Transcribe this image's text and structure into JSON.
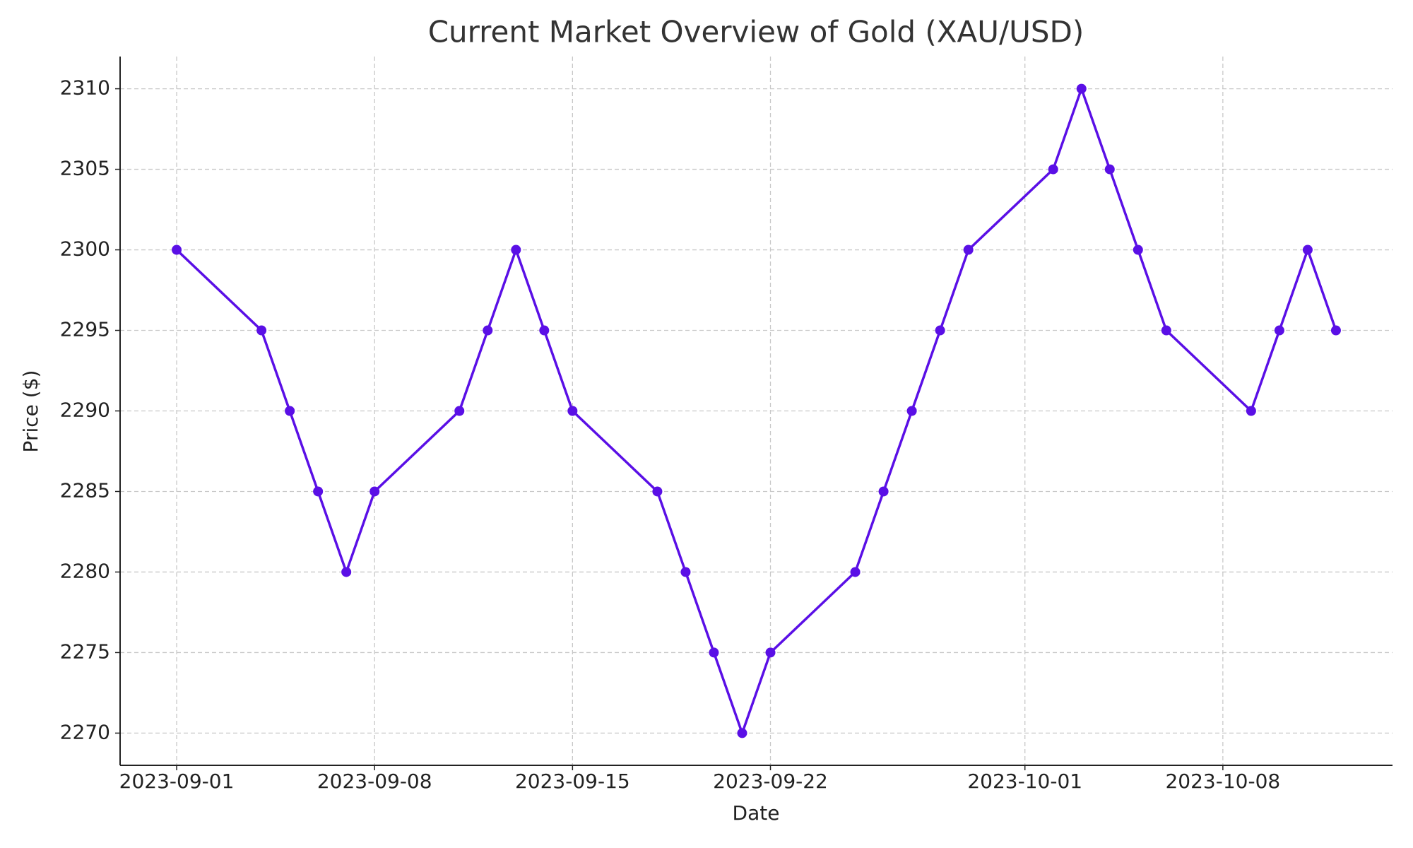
{
  "chart_data": {
    "type": "line",
    "title": "Current Market Overview of Gold (XAU/USD)",
    "x_label": "Date",
    "y_label": "Price ($)",
    "x": [
      "2023-09-01",
      "2023-09-04",
      "2023-09-05",
      "2023-09-06",
      "2023-09-07",
      "2023-09-08",
      "2023-09-11",
      "2023-09-12",
      "2023-09-13",
      "2023-09-14",
      "2023-09-15",
      "2023-09-18",
      "2023-09-19",
      "2023-09-20",
      "2023-09-21",
      "2023-09-22",
      "2023-09-25",
      "2023-09-26",
      "2023-09-27",
      "2023-09-28",
      "2023-09-29",
      "2023-10-02",
      "2023-10-03",
      "2023-10-04",
      "2023-10-05",
      "2023-10-06",
      "2023-10-09",
      "2023-10-10",
      "2023-10-11",
      "2023-10-12"
    ],
    "values": [
      2300,
      2295,
      2290,
      2285,
      2280,
      2285,
      2290,
      2295,
      2300,
      2295,
      2290,
      2285,
      2280,
      2275,
      2270,
      2275,
      2280,
      2285,
      2290,
      2295,
      2300,
      2305,
      2310,
      2305,
      2300,
      2295,
      2290,
      2295,
      2300,
      2295
    ],
    "color": "#5a0fe6",
    "xlim": [
      "2023-08-30",
      "2023-10-14"
    ],
    "xticks": [
      "2023-09-01",
      "2023-09-08",
      "2023-09-15",
      "2023-09-22",
      "2023-10-01",
      "2023-10-08"
    ],
    "ylim": [
      2268,
      2312
    ],
    "yticks": [
      2270,
      2275,
      2280,
      2285,
      2290,
      2295,
      2300,
      2305,
      2310
    ],
    "grid": true
  }
}
